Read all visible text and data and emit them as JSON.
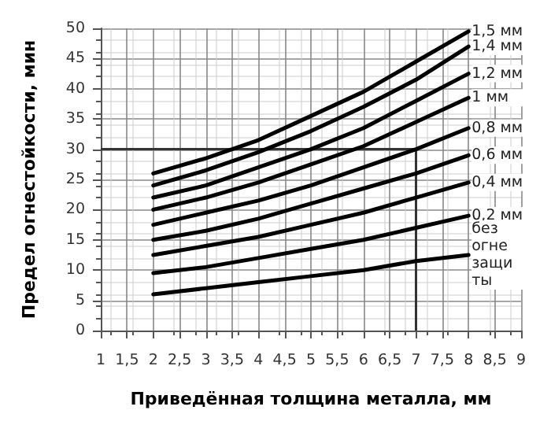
{
  "chart_data": {
    "type": "line",
    "xlabel": "Приведённая толщина металла, мм",
    "ylabel": "Предел огнестойкости, мин",
    "x": [
      2,
      3,
      4,
      5,
      6,
      7,
      8
    ],
    "series": [
      {
        "name": "1,5 мм",
        "color": "#000000",
        "values": [
          26,
          28.5,
          31.5,
          35.5,
          39.5,
          44.5,
          49.5
        ]
      },
      {
        "name": "1,4 мм",
        "color": "#000000",
        "values": [
          24,
          26.5,
          29.5,
          33,
          37,
          41.5,
          47
        ]
      },
      {
        "name": "1,2 мм",
        "color": "#000000",
        "values": [
          22,
          24,
          27,
          30,
          33.5,
          38,
          42.5
        ]
      },
      {
        "name": "1 мм",
        "color": "#000000",
        "values": [
          20,
          22,
          24.5,
          27.5,
          30.5,
          34.5,
          38.5
        ]
      },
      {
        "name": "0,8 мм",
        "color": "#000000",
        "values": [
          17.5,
          19.5,
          21.5,
          24,
          27,
          30,
          33.5
        ]
      },
      {
        "name": "0,6 мм",
        "color": "#000000",
        "values": [
          15,
          16.5,
          18.5,
          21,
          23.5,
          26,
          29
        ]
      },
      {
        "name": "0,4 мм",
        "color": "#000000",
        "values": [
          12.5,
          14,
          15.5,
          17.5,
          19.5,
          22,
          24.5
        ]
      },
      {
        "name": "0,2 мм",
        "color": "#000000",
        "values": [
          9.5,
          10.5,
          12,
          13.5,
          15,
          17,
          19
        ]
      },
      {
        "name": "без огнезащиты",
        "color": "#000000",
        "values": [
          6,
          7,
          8,
          9,
          10,
          11.5,
          12.5
        ]
      }
    ],
    "xlim": [
      1,
      9
    ],
    "xticks": [
      1,
      {
        "value": 1.5,
        "label": "1,5"
      },
      2,
      {
        "value": 2.5,
        "label": "2,5"
      },
      3,
      {
        "value": 3.5,
        "label": "3,5"
      },
      4,
      {
        "value": 4.5,
        "label": "4,5"
      },
      5,
      {
        "value": 5.5,
        "label": "5,5"
      },
      6,
      {
        "value": 6.5,
        "label": "6,5"
      },
      7,
      {
        "value": 7.5,
        "label": "7,5"
      },
      8,
      {
        "value": 8.5,
        "label": "8,5"
      },
      9
    ],
    "ylim": [
      0,
      50
    ],
    "yticks": [
      0,
      5,
      10,
      15,
      20,
      25,
      30,
      35,
      40,
      45,
      50
    ],
    "ref_lines": [
      {
        "axis": "y",
        "value": 30,
        "color": "#333333"
      },
      {
        "axis": "x",
        "value": 7,
        "color": "#333333"
      }
    ],
    "grid": true,
    "legend": false,
    "marker": "none",
    "line_style": "solid"
  }
}
